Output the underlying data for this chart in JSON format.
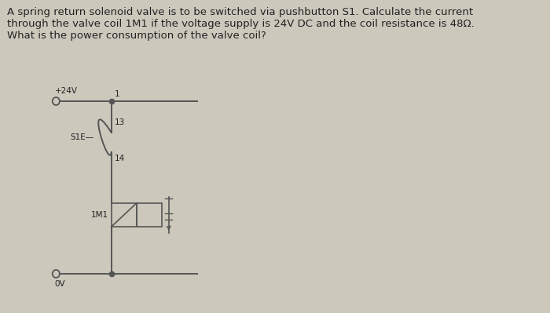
{
  "bg_color": "#ccc8bc",
  "text_color": "#222222",
  "line_color": "#555555",
  "title_text": "A spring return solenoid valve is to be switched via pushbutton S1. Calculate the current\nthrough the valve coil 1M1 if the voltage supply is 24V DC and the coil resistance is 48Ω.\nWhat is the power consumption of the valve coil?",
  "title_fontsize": 9.5,
  "plus24_label": "+24V",
  "node_top_label": "1",
  "s1_label": "S1E—",
  "contact_13_label": "13",
  "contact_14_label": "14",
  "coil_label": "1M1",
  "ov_label": "0V"
}
